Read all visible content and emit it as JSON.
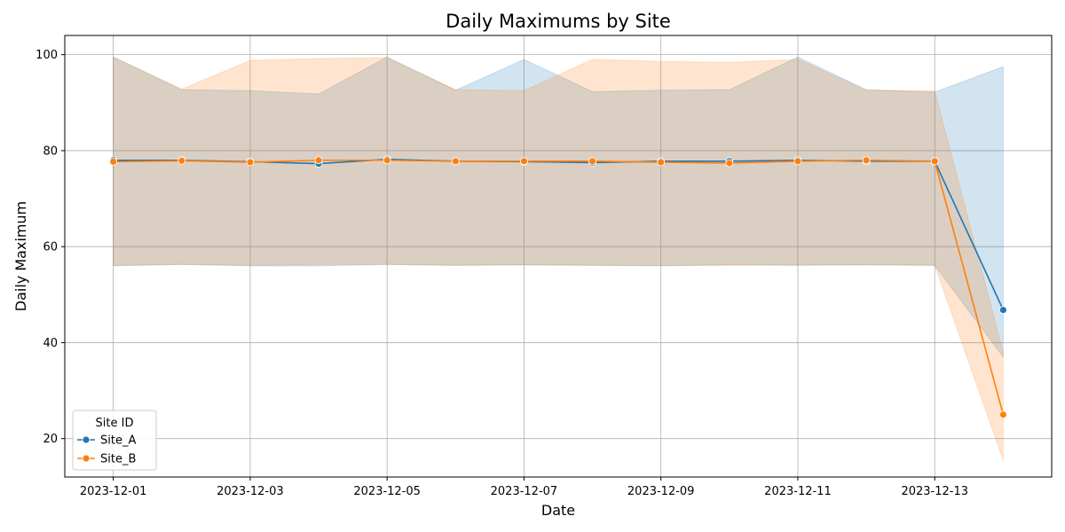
{
  "chart_data": {
    "type": "line",
    "title": "Daily Maximums by Site",
    "xlabel": "Date",
    "ylabel": "Daily Maximum",
    "x": [
      "2023-12-01",
      "2023-12-02",
      "2023-12-03",
      "2023-12-04",
      "2023-12-05",
      "2023-12-06",
      "2023-12-07",
      "2023-12-08",
      "2023-12-09",
      "2023-12-10",
      "2023-12-11",
      "2023-12-12",
      "2023-12-13",
      "2023-12-14"
    ],
    "x_ticks": [
      "2023-12-01",
      "2023-12-03",
      "2023-12-05",
      "2023-12-07",
      "2023-12-09",
      "2023-12-11",
      "2023-12-13"
    ],
    "xlim": [
      "2023-11-30T07:00",
      "2023-12-14T17:00"
    ],
    "ylim": [
      12,
      104
    ],
    "y_ticks": [
      20,
      40,
      60,
      80,
      100
    ],
    "grid": true,
    "legend": {
      "title": "Site ID",
      "placement": "lower-left"
    },
    "series": [
      {
        "name": "Site_A",
        "color": "#1f77b4",
        "values": [
          78.0,
          78.0,
          77.7,
          77.3,
          78.2,
          77.8,
          77.7,
          77.5,
          77.8,
          77.8,
          78.0,
          77.8,
          77.8,
          46.8
        ],
        "band_upper": [
          99.5,
          92.7,
          92.5,
          91.8,
          99.5,
          92.6,
          99.0,
          92.3,
          92.6,
          92.7,
          99.5,
          92.7,
          92.2,
          97.5
        ],
        "band_lower": [
          56.0,
          56.3,
          56.0,
          56.0,
          56.3,
          56.1,
          56.2,
          56.1,
          56.0,
          56.2,
          56.1,
          56.2,
          56.1,
          37.0
        ]
      },
      {
        "name": "Site_B",
        "color": "#ff7f0e",
        "values": [
          77.7,
          77.9,
          77.6,
          78.0,
          78.0,
          77.8,
          77.8,
          77.8,
          77.6,
          77.4,
          77.8,
          78.0,
          77.8,
          25.0
        ],
        "band_upper": [
          99.5,
          92.8,
          98.8,
          99.2,
          99.4,
          92.7,
          92.5,
          99.0,
          98.6,
          98.4,
          99.0,
          92.6,
          92.4,
          38.0
        ],
        "band_lower": [
          56.1,
          56.3,
          56.1,
          56.3,
          56.3,
          56.1,
          56.2,
          56.1,
          56.1,
          56.1,
          56.2,
          56.2,
          56.1,
          15.5
        ]
      }
    ]
  }
}
